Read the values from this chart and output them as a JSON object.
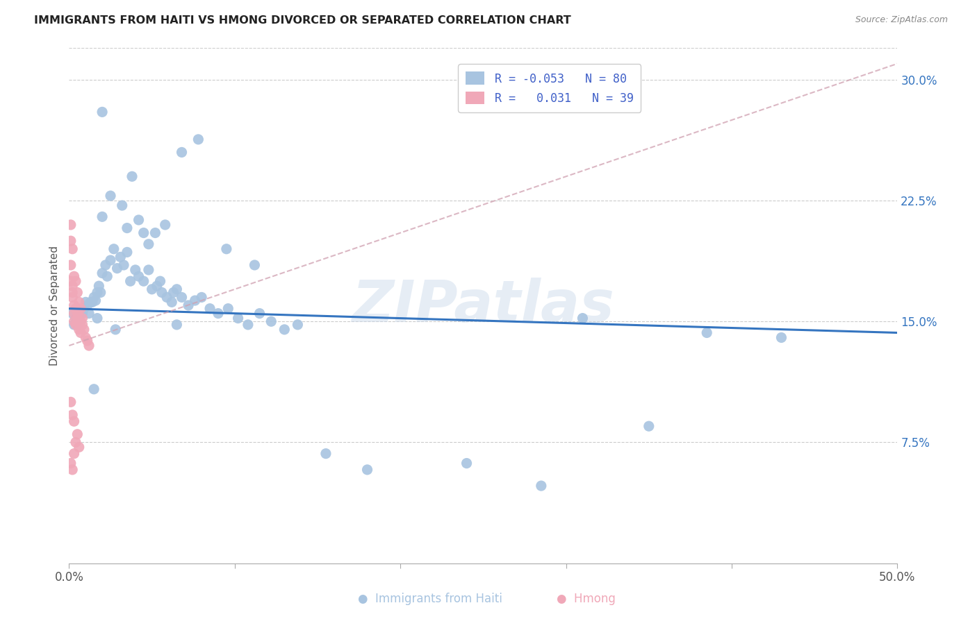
{
  "title": "IMMIGRANTS FROM HAITI VS HMONG DIVORCED OR SEPARATED CORRELATION CHART",
  "source": "Source: ZipAtlas.com",
  "ylabel": "Divorced or Separated",
  "ytick_labels": [
    "7.5%",
    "15.0%",
    "22.5%",
    "30.0%"
  ],
  "ytick_values": [
    0.075,
    0.15,
    0.225,
    0.3
  ],
  "xmin": 0.0,
  "xmax": 0.5,
  "ymin": 0.0,
  "ymax": 0.32,
  "haiti_color": "#a8c4e0",
  "hmong_color": "#f0a8b8",
  "haiti_line_color": "#3575c0",
  "hmong_line_color": "#d0a0b0",
  "legend_text_color": "#4060c8",
  "watermark": "ZIPatlas",
  "haiti_line_y0": 0.158,
  "haiti_line_y1": 0.143,
  "hmong_line_y0": 0.135,
  "hmong_line_y1": 0.31,
  "haiti_x": [
    0.002,
    0.003,
    0.004,
    0.005,
    0.006,
    0.007,
    0.008,
    0.009,
    0.01,
    0.011,
    0.012,
    0.013,
    0.014,
    0.015,
    0.016,
    0.017,
    0.018,
    0.019,
    0.02,
    0.022,
    0.023,
    0.025,
    0.027,
    0.029,
    0.031,
    0.033,
    0.035,
    0.037,
    0.04,
    0.042,
    0.045,
    0.048,
    0.05,
    0.053,
    0.056,
    0.059,
    0.062,
    0.065,
    0.068,
    0.072,
    0.076,
    0.08,
    0.085,
    0.09,
    0.096,
    0.102,
    0.108,
    0.115,
    0.122,
    0.13,
    0.138,
    0.048,
    0.055,
    0.063,
    0.035,
    0.042,
    0.052,
    0.025,
    0.032,
    0.02,
    0.038,
    0.058,
    0.068,
    0.078,
    0.028,
    0.017,
    0.045,
    0.095,
    0.112,
    0.31,
    0.385,
    0.43,
    0.065,
    0.155,
    0.18,
    0.24,
    0.285,
    0.35,
    0.02,
    0.015
  ],
  "haiti_y": [
    0.155,
    0.148,
    0.152,
    0.148,
    0.15,
    0.155,
    0.155,
    0.158,
    0.162,
    0.16,
    0.155,
    0.162,
    0.162,
    0.165,
    0.163,
    0.168,
    0.172,
    0.168,
    0.18,
    0.185,
    0.178,
    0.188,
    0.195,
    0.183,
    0.19,
    0.185,
    0.193,
    0.175,
    0.182,
    0.178,
    0.175,
    0.182,
    0.17,
    0.172,
    0.168,
    0.165,
    0.162,
    0.17,
    0.165,
    0.16,
    0.163,
    0.165,
    0.158,
    0.155,
    0.158,
    0.152,
    0.148,
    0.155,
    0.15,
    0.145,
    0.148,
    0.198,
    0.175,
    0.168,
    0.208,
    0.213,
    0.205,
    0.228,
    0.222,
    0.215,
    0.24,
    0.21,
    0.255,
    0.263,
    0.145,
    0.152,
    0.205,
    0.195,
    0.185,
    0.152,
    0.143,
    0.14,
    0.148,
    0.068,
    0.058,
    0.062,
    0.048,
    0.085,
    0.28,
    0.108
  ],
  "hmong_x": [
    0.001,
    0.001,
    0.002,
    0.002,
    0.002,
    0.003,
    0.003,
    0.003,
    0.004,
    0.004,
    0.005,
    0.005,
    0.006,
    0.006,
    0.007,
    0.007,
    0.008,
    0.009,
    0.01,
    0.011,
    0.012,
    0.001,
    0.002,
    0.003,
    0.004,
    0.005,
    0.006,
    0.007,
    0.008,
    0.001,
    0.002,
    0.003,
    0.001,
    0.002,
    0.003,
    0.004,
    0.005,
    0.006,
    0.001
  ],
  "hmong_y": [
    0.2,
    0.185,
    0.172,
    0.168,
    0.165,
    0.16,
    0.155,
    0.15,
    0.158,
    0.148,
    0.155,
    0.15,
    0.148,
    0.145,
    0.15,
    0.143,
    0.148,
    0.145,
    0.14,
    0.138,
    0.135,
    0.21,
    0.195,
    0.178,
    0.175,
    0.168,
    0.162,
    0.158,
    0.152,
    0.1,
    0.092,
    0.088,
    0.062,
    0.058,
    0.068,
    0.075,
    0.08,
    0.072,
    0.175
  ]
}
